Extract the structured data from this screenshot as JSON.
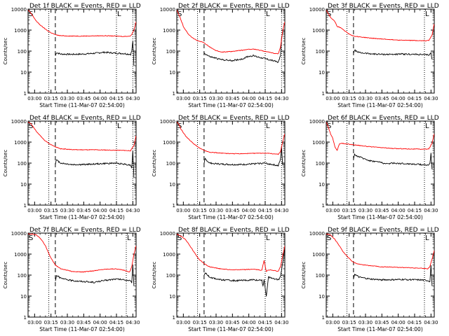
{
  "page": {
    "ylabel": "Counts/sec",
    "xlabel": "Start Time (11-Mar-07 02:54:00)",
    "y_ticks": [
      "1",
      "10",
      "100",
      "1000",
      "10000"
    ],
    "x_ticks": [
      "03:00",
      "03:15",
      "03:30",
      "03:45",
      "04:00",
      "04:15",
      "04:30"
    ],
    "colors": {
      "events": "#000000",
      "lld": "#ff0000"
    }
  },
  "chart_data": [
    {
      "type": "line",
      "title": "Det 1f BLACK = Events, RED = LLD",
      "x_unit": "minutes after 02:54:00",
      "xlim": [
        0,
        99
      ],
      "ylim": [
        1,
        10000
      ],
      "y_scale": "log",
      "markers": {
        "dotted": [
          19,
          81,
          96
        ],
        "dashed": [
          25
        ]
      },
      "corner_marks": [
        "S",
        "L"
      ],
      "series": [
        {
          "name": "BLACK = Events",
          "color": "#000000",
          "x": [
            25,
            26,
            30,
            40,
            50,
            60,
            70,
            80,
            88,
            94,
            95,
            96,
            97
          ],
          "y": [
            60,
            85,
            72,
            70,
            72,
            78,
            88,
            80,
            76,
            70,
            100,
            300,
            20
          ]
        },
        {
          "name": "RED = LLD",
          "color": "#ff0000",
          "x": [
            0,
            2,
            4,
            8,
            12,
            16,
            20,
            25,
            30,
            40,
            50,
            60,
            70,
            80,
            88,
            94,
            97,
            99
          ],
          "y": [
            9000,
            7000,
            5000,
            2500,
            1600,
            1100,
            800,
            600,
            540,
            520,
            520,
            530,
            540,
            520,
            500,
            520,
            1000,
            2500
          ]
        }
      ]
    },
    {
      "type": "line",
      "title": "Det 2f BLACK = Events, RED = LLD",
      "x_unit": "minutes after 02:54:00",
      "xlim": [
        0,
        99
      ],
      "ylim": [
        1,
        10000
      ],
      "y_scale": "log",
      "markers": {
        "dotted": [
          19,
          81,
          96
        ],
        "dashed": [
          25
        ]
      },
      "corner_marks": [
        "S",
        "L"
      ],
      "series": [
        {
          "name": "BLACK = Events",
          "color": "#000000",
          "x": [
            25,
            30,
            40,
            50,
            60,
            65,
            70,
            80,
            88,
            93,
            95,
            96,
            97
          ],
          "y": [
            80,
            55,
            40,
            35,
            42,
            55,
            60,
            45,
            35,
            30,
            60,
            400,
            800
          ]
        },
        {
          "name": "RED = LLD",
          "color": "#ff0000",
          "x": [
            0,
            3,
            6,
            10,
            15,
            20,
            25,
            30,
            35,
            40,
            50,
            60,
            65,
            70,
            80,
            88,
            93,
            95,
            97,
            99
          ],
          "y": [
            9000,
            4000,
            1500,
            700,
            400,
            300,
            250,
            160,
            110,
            90,
            95,
            110,
            120,
            125,
            100,
            80,
            75,
            150,
            900,
            2500
          ]
        }
      ]
    },
    {
      "type": "line",
      "title": "Det 3f BLACK = Events, RED = LLD",
      "x_unit": "minutes after 02:54:00",
      "xlim": [
        0,
        99
      ],
      "ylim": [
        1,
        10000
      ],
      "y_scale": "log",
      "markers": {
        "dotted": [
          19,
          90
        ],
        "dashed": [
          25
        ]
      },
      "corner_marks": [
        "S",
        "L"
      ],
      "series": [
        {
          "name": "BLACK = Events",
          "color": "#000000",
          "x": [
            25,
            26,
            30,
            40,
            50,
            60,
            70,
            80,
            88,
            94,
            96,
            97
          ],
          "y": [
            80,
            110,
            85,
            75,
            70,
            70,
            72,
            70,
            68,
            65,
            80,
            40
          ]
        },
        {
          "name": "RED = LLD",
          "color": "#ff0000",
          "x": [
            0,
            2,
            4,
            8,
            10,
            12,
            16,
            20,
            25,
            30,
            40,
            50,
            60,
            70,
            80,
            88,
            94,
            97,
            99
          ],
          "y": [
            9000,
            6000,
            4000,
            2500,
            1500,
            1400,
            1000,
            700,
            520,
            480,
            420,
            380,
            350,
            330,
            320,
            310,
            320,
            600,
            2000
          ]
        }
      ]
    },
    {
      "type": "line",
      "title": "Det 4f BLACK = Events, RED = LLD",
      "x_unit": "minutes after 02:54:00",
      "xlim": [
        0,
        99
      ],
      "ylim": [
        1,
        10000
      ],
      "y_scale": "log",
      "markers": {
        "dotted": [
          19,
          81,
          96
        ],
        "dashed": [
          25
        ]
      },
      "corner_marks": [
        "S",
        "L"
      ],
      "series": [
        {
          "name": "BLACK = Events",
          "color": "#000000",
          "x": [
            25,
            26,
            30,
            40,
            50,
            60,
            70,
            80,
            88,
            94,
            95,
            96,
            97
          ],
          "y": [
            90,
            140,
            100,
            85,
            85,
            90,
            95,
            100,
            90,
            80,
            60,
            400,
            20
          ]
        },
        {
          "name": "RED = LLD",
          "color": "#ff0000",
          "x": [
            0,
            2,
            4,
            8,
            12,
            16,
            20,
            25,
            30,
            40,
            50,
            60,
            70,
            80,
            88,
            94,
            97,
            99
          ],
          "y": [
            9000,
            8000,
            6000,
            3000,
            1800,
            1100,
            800,
            600,
            480,
            440,
            430,
            430,
            420,
            410,
            400,
            390,
            700,
            2000
          ]
        }
      ]
    },
    {
      "type": "line",
      "title": "Det 5f BLACK = Events, RED = LLD",
      "x_unit": "minutes after 02:54:00",
      "xlim": [
        0,
        99
      ],
      "ylim": [
        1,
        10000
      ],
      "y_scale": "log",
      "markers": {
        "dotted": [
          19,
          81,
          96
        ],
        "dashed": [
          25
        ]
      },
      "corner_marks": [
        "S",
        "L"
      ],
      "series": [
        {
          "name": "BLACK = Events",
          "color": "#000000",
          "x": [
            25,
            26,
            30,
            40,
            50,
            60,
            70,
            80,
            88,
            93,
            95,
            96,
            97
          ],
          "y": [
            90,
            160,
            100,
            90,
            85,
            85,
            92,
            100,
            85,
            75,
            150,
            600,
            80
          ]
        },
        {
          "name": "RED = LLD",
          "color": "#ff0000",
          "x": [
            0,
            2,
            4,
            8,
            12,
            16,
            20,
            25,
            30,
            40,
            50,
            60,
            70,
            80,
            88,
            93,
            95,
            97,
            99
          ],
          "y": [
            9000,
            7000,
            4000,
            2000,
            1200,
            800,
            550,
            400,
            330,
            300,
            280,
            280,
            290,
            300,
            280,
            260,
            350,
            1000,
            2500
          ]
        }
      ]
    },
    {
      "type": "line",
      "title": "Det 6f BLACK = Events, RED = LLD",
      "x_unit": "minutes after 02:54:00",
      "xlim": [
        0,
        99
      ],
      "ylim": [
        1,
        10000
      ],
      "y_scale": "log",
      "markers": {
        "dotted": [
          19,
          90
        ],
        "dashed": [
          25
        ]
      },
      "corner_marks": [
        "S",
        "L"
      ],
      "series": [
        {
          "name": "BLACK = Events",
          "color": "#000000",
          "x": [
            25,
            26,
            30,
            40,
            50,
            55,
            60,
            70,
            80,
            88,
            94,
            95,
            96,
            97
          ],
          "y": [
            150,
            250,
            200,
            130,
            110,
            90,
            100,
            95,
            90,
            85,
            80,
            100,
            300,
            50
          ]
        },
        {
          "name": "RED = LLD",
          "color": "#ff0000",
          "x": [
            0,
            2,
            4,
            6,
            8,
            10,
            12,
            14,
            16,
            20,
            25,
            30,
            40,
            50,
            60,
            70,
            80,
            88,
            94,
            97,
            99
          ],
          "y": [
            9000,
            5000,
            2500,
            1500,
            600,
            400,
            800,
            900,
            850,
            800,
            750,
            700,
            600,
            550,
            500,
            480,
            470,
            460,
            470,
            900,
            2500
          ]
        }
      ]
    },
    {
      "type": "line",
      "title": "Det 7f BLACK = Events, RED = LLD",
      "x_unit": "minutes after 02:54:00",
      "xlim": [
        0,
        99
      ],
      "ylim": [
        1,
        10000
      ],
      "y_scale": "log",
      "markers": {
        "dotted": [
          19,
          90
        ],
        "dashed": [
          25
        ]
      },
      "corner_marks": [
        "S",
        "L"
      ],
      "series": [
        {
          "name": "BLACK = Events",
          "color": "#000000",
          "x": [
            25,
            26,
            30,
            40,
            50,
            60,
            70,
            80,
            88,
            93,
            95,
            96,
            97
          ],
          "y": [
            50,
            100,
            70,
            55,
            50,
            45,
            55,
            65,
            60,
            55,
            45,
            300,
            30
          ]
        },
        {
          "name": "RED = LLD",
          "color": "#ff0000",
          "x": [
            0,
            2,
            4,
            8,
            12,
            16,
            20,
            25,
            30,
            40,
            50,
            60,
            70,
            80,
            88,
            93,
            95,
            97,
            99
          ],
          "y": [
            9000,
            9000,
            9000,
            8000,
            5000,
            2500,
            800,
            300,
            200,
            150,
            140,
            160,
            190,
            200,
            170,
            140,
            250,
            1000,
            2500
          ]
        }
      ]
    },
    {
      "type": "line",
      "title": "Det 8f BLACK = Events, RED = LLD",
      "x_unit": "minutes after 02:54:00",
      "xlim": [
        0,
        99
      ],
      "ylim": [
        1,
        10000
      ],
      "y_scale": "log",
      "markers": {
        "dotted": [
          19,
          81,
          96
        ],
        "dashed": [
          25
        ]
      },
      "corner_marks": [
        "S",
        "L"
      ],
      "series": [
        {
          "name": "BLACK = Events",
          "color": "#000000",
          "x": [
            25,
            26,
            30,
            40,
            50,
            60,
            70,
            78,
            79,
            80,
            82,
            84,
            88,
            93,
            95,
            97,
            99
          ],
          "y": [
            100,
            130,
            80,
            60,
            55,
            55,
            60,
            55,
            30,
            60,
            10,
            80,
            70,
            60,
            80,
            400,
            2000
          ]
        },
        {
          "name": "RED = LLD",
          "color": "#ff0000",
          "x": [
            0,
            2,
            4,
            8,
            12,
            16,
            20,
            25,
            30,
            40,
            50,
            60,
            70,
            78,
            79,
            80,
            82,
            84,
            88,
            93,
            95,
            97,
            99
          ],
          "y": [
            9000,
            8000,
            7000,
            5000,
            2500,
            1200,
            600,
            350,
            250,
            200,
            180,
            180,
            190,
            170,
            300,
            500,
            150,
            180,
            170,
            150,
            250,
            800,
            2500
          ]
        }
      ]
    },
    {
      "type": "line",
      "title": "Det 9f BLACK = Events, RED = LLD",
      "x_unit": "minutes after 02:54:00",
      "xlim": [
        0,
        99
      ],
      "ylim": [
        1,
        10000
      ],
      "y_scale": "log",
      "markers": {
        "dotted": [
          19,
          90
        ],
        "dashed": [
          25
        ]
      },
      "corner_marks": [
        "S",
        "L"
      ],
      "series": [
        {
          "name": "BLACK = Events",
          "color": "#000000",
          "x": [
            25,
            26,
            30,
            40,
            50,
            60,
            70,
            80,
            88,
            93,
            95,
            96,
            97
          ],
          "y": [
            70,
            110,
            80,
            65,
            60,
            60,
            62,
            60,
            58,
            55,
            50,
            300,
            30
          ]
        },
        {
          "name": "RED = LLD",
          "color": "#ff0000",
          "x": [
            0,
            2,
            4,
            8,
            12,
            16,
            20,
            25,
            30,
            40,
            50,
            60,
            70,
            80,
            88,
            93,
            95,
            97,
            99
          ],
          "y": [
            9000,
            9000,
            8000,
            5000,
            2500,
            1200,
            700,
            400,
            330,
            280,
            250,
            240,
            230,
            220,
            210,
            200,
            250,
            600,
            1500
          ]
        }
      ]
    }
  ]
}
